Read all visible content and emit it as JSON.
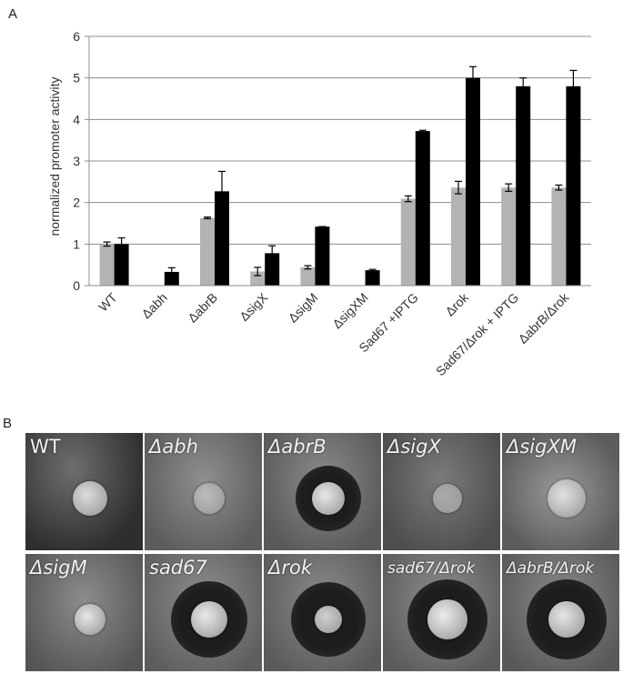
{
  "panel_a": {
    "letter": "A"
  },
  "panel_b": {
    "letter": "B"
  },
  "chart_data": {
    "type": "bar",
    "ylabel": "normalized promoter activity",
    "ylim": [
      0,
      6
    ],
    "yticks": [
      "0",
      "1",
      "2",
      "3",
      "4",
      "5",
      "6"
    ],
    "grid": true,
    "categories": [
      "WT",
      "Δabh",
      "ΔabrB",
      "ΔsigX",
      "ΔsigM",
      "ΔsigXM",
      "Sad67 +IPTG",
      "Δrok",
      "Sad67/Δrok + IPTG",
      "ΔabrB/Δrok"
    ],
    "series": [
      {
        "color": "#b3b3b3",
        "values": [
          1.0,
          0,
          1.63,
          0.34,
          0.44,
          0,
          2.09,
          2.36,
          2.36,
          2.36
        ],
        "errors": [
          0.05,
          0,
          0.02,
          0.1,
          0.04,
          0,
          0.07,
          0.15,
          0.09,
          0.06
        ]
      },
      {
        "color": "#000000",
        "values": [
          1.0,
          0.33,
          2.27,
          0.78,
          1.42,
          0.37,
          3.72,
          5.0,
          4.8,
          4.8
        ],
        "errors": [
          0.15,
          0.1,
          0.48,
          0.18,
          0.0,
          0.02,
          0.02,
          0.27,
          0.2,
          0.38
        ]
      }
    ]
  },
  "plates": [
    {
      "label": "WT",
      "italic": false
    },
    {
      "label": "Δabh",
      "italic": true
    },
    {
      "label": "ΔabrB",
      "italic": true
    },
    {
      "label": "ΔsigX",
      "italic": true
    },
    {
      "label": "ΔsigXM",
      "italic": true
    },
    {
      "label": "ΔsigM",
      "italic": true
    },
    {
      "label": "sad67",
      "italic": true
    },
    {
      "label": "Δrok",
      "italic": true
    },
    {
      "label": "sad67/Δrok",
      "italic": true
    },
    {
      "label": "ΔabrB/Δrok",
      "italic": true
    }
  ]
}
